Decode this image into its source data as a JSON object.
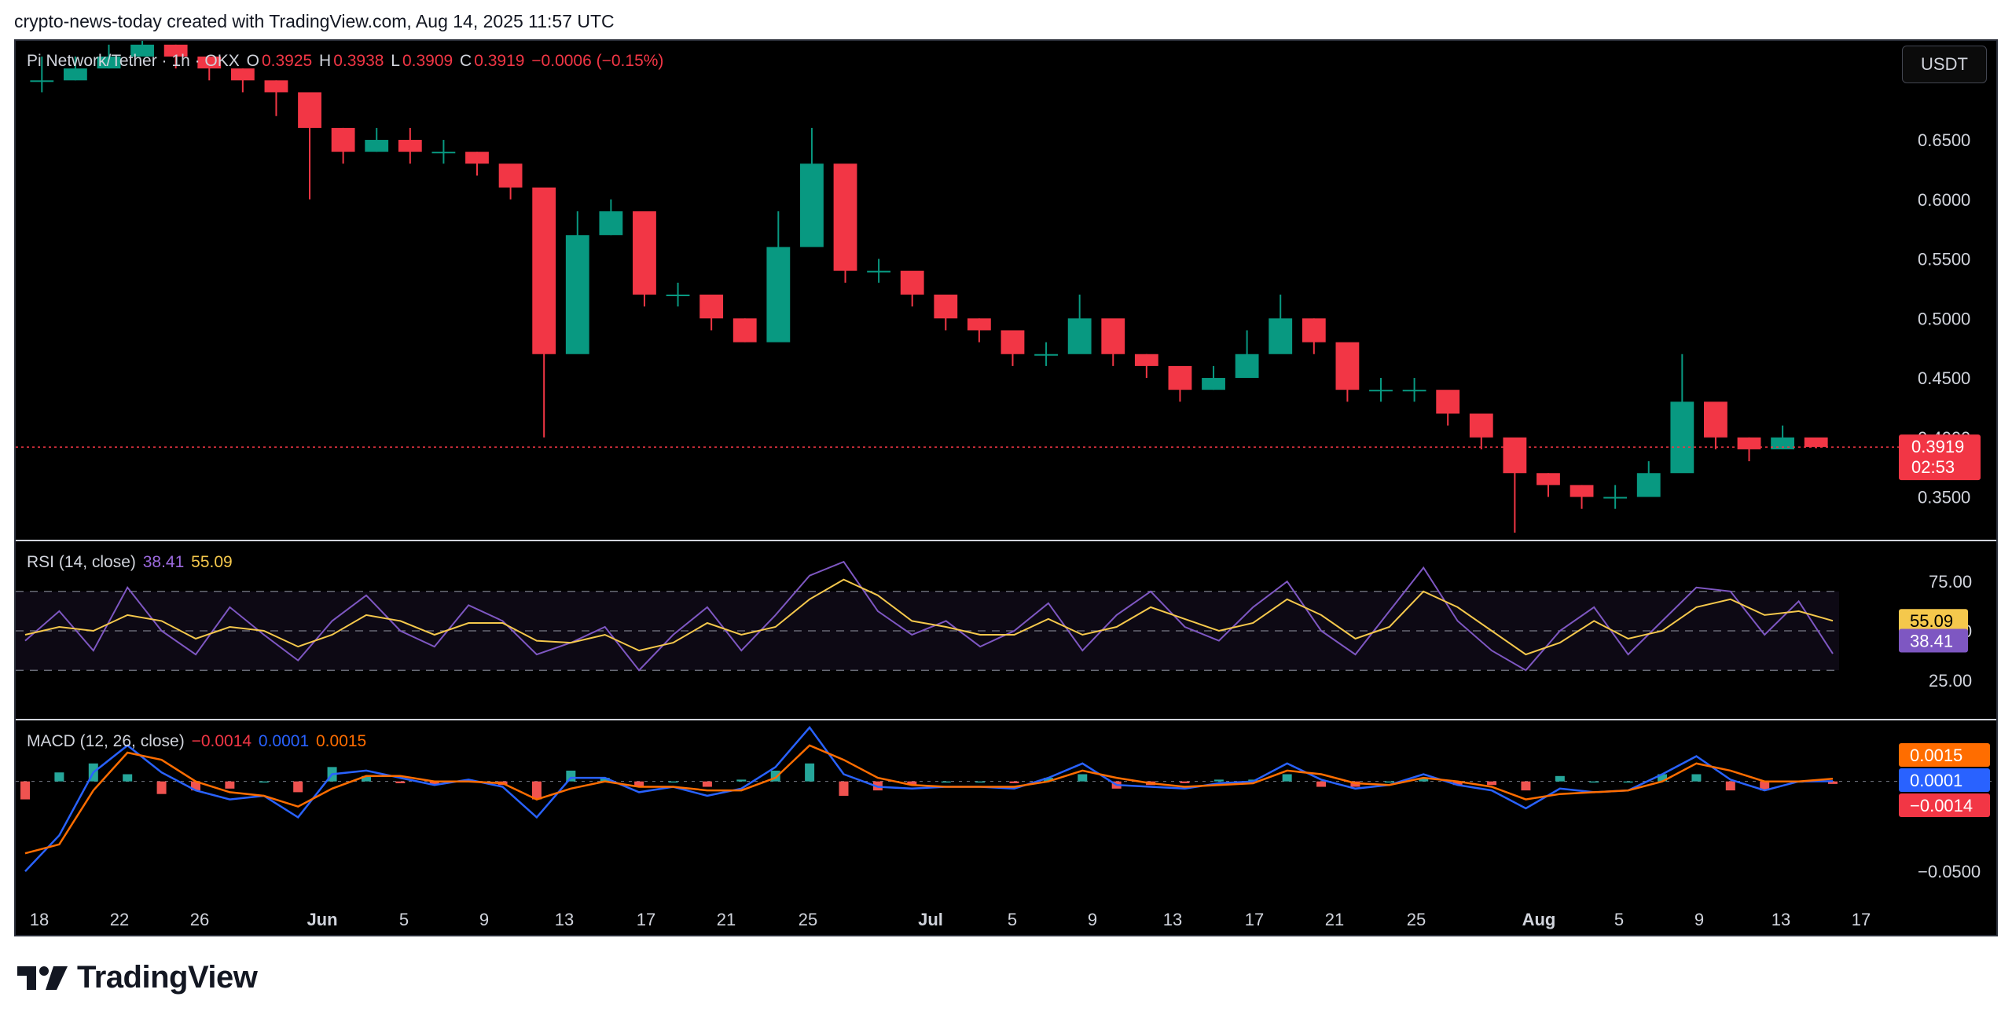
{
  "attribution": "crypto-news-today created with TradingView.com, Aug 14, 2025 11:57 UTC",
  "footer": {
    "brand": "TradingView"
  },
  "currency_button": "USDT",
  "price_pane": {
    "symbol": "Pi Network/Tether · 1h · OKX",
    "open_label": "O",
    "open": "0.3925",
    "high_label": "H",
    "high": "0.3938",
    "low_label": "L",
    "low": "0.3909",
    "close_label": "C",
    "close": "0.3919",
    "change": "−0.0006 (−0.15%)",
    "y_ticks": [
      "0.6500",
      "0.6000",
      "0.5500",
      "0.5000",
      "0.4500",
      "0.4000",
      "0.3500"
    ],
    "last_price": "0.3919",
    "countdown": "02:53"
  },
  "rsi_pane": {
    "title": "RSI (14, close)",
    "rsi_value": "38.41",
    "ma_value": "55.09",
    "y_ticks": [
      "75.00",
      "50.00",
      "25.00"
    ]
  },
  "macd_pane": {
    "title": "MACD (12, 26, close)",
    "hist_value": "−0.0014",
    "macd_value": "0.0001",
    "signal_value": "0.0015",
    "y_ticks": [
      "−0.0500"
    ]
  },
  "x_axis": [
    "18",
    "22",
    "26",
    "Jun",
    "5",
    "9",
    "13",
    "17",
    "21",
    "25",
    "Jul",
    "5",
    "9",
    "13",
    "17",
    "21",
    "25",
    "Aug",
    "5",
    "9",
    "13",
    "17"
  ],
  "colors": {
    "up": "#089981",
    "down": "#f23645",
    "rsi": "#7e57c2",
    "rsi_ma": "#f5c84c",
    "macd": "#2962ff",
    "signal": "#ff6d00",
    "hist_up": "#26a69a",
    "hist_down": "#ef5350"
  },
  "chart_data": [
    {
      "type": "candlestick",
      "series": [
        {
          "name": "Pi Network/Tether · 1h · OKX",
          "x": [
            "May 16",
            "May 18",
            "May 20",
            "May 22",
            "May 24",
            "May 26",
            "May 28",
            "May 30",
            "Jun 1",
            "Jun 3",
            "Jun 5",
            "Jun 7",
            "Jun 9",
            "Jun 11",
            "Jun 12",
            "Jun 13",
            "Jun 15",
            "Jun 17",
            "Jun 19",
            "Jun 21",
            "Jun 23",
            "Jun 24",
            "Jun 25",
            "Jun 26",
            "Jun 27",
            "Jun 29",
            "Jul 1",
            "Jul 3",
            "Jul 5",
            "Jul 7",
            "Jul 9",
            "Jul 11",
            "Jul 13",
            "Jul 15",
            "Jul 17",
            "Jul 19",
            "Jul 21",
            "Jul 22",
            "Jul 23",
            "Jul 25",
            "Jul 27",
            "Jul 29",
            "Jul 31",
            "Aug 1",
            "Aug 2",
            "Aug 3",
            "Aug 5",
            "Aug 7",
            "Aug 9",
            "Aug 10",
            "Aug 11",
            "Aug 12",
            "Aug 13",
            "Aug 14"
          ],
          "close": [
            0.7,
            0.71,
            0.72,
            0.73,
            0.72,
            0.71,
            0.7,
            0.69,
            0.66,
            0.64,
            0.65,
            0.64,
            0.64,
            0.63,
            0.61,
            0.47,
            0.57,
            0.59,
            0.52,
            0.52,
            0.5,
            0.48,
            0.56,
            0.63,
            0.54,
            0.54,
            0.52,
            0.5,
            0.49,
            0.47,
            0.47,
            0.5,
            0.47,
            0.46,
            0.44,
            0.45,
            0.47,
            0.5,
            0.48,
            0.44,
            0.44,
            0.44,
            0.42,
            0.4,
            0.37,
            0.36,
            0.35,
            0.35,
            0.37,
            0.43,
            0.4,
            0.39,
            0.4,
            0.392
          ],
          "high": [
            0.72,
            0.72,
            0.73,
            0.74,
            0.73,
            0.72,
            0.71,
            0.7,
            0.67,
            0.66,
            0.66,
            0.66,
            0.65,
            0.64,
            0.62,
            0.6,
            0.59,
            0.6,
            0.54,
            0.53,
            0.52,
            0.5,
            0.59,
            0.66,
            0.56,
            0.55,
            0.53,
            0.51,
            0.5,
            0.48,
            0.48,
            0.52,
            0.48,
            0.47,
            0.45,
            0.46,
            0.49,
            0.52,
            0.5,
            0.45,
            0.45,
            0.45,
            0.43,
            0.41,
            0.39,
            0.37,
            0.36,
            0.36,
            0.38,
            0.47,
            0.42,
            0.4,
            0.41,
            0.3938
          ],
          "low": [
            0.69,
            0.7,
            0.71,
            0.72,
            0.71,
            0.7,
            0.69,
            0.67,
            0.6,
            0.63,
            0.64,
            0.63,
            0.63,
            0.62,
            0.6,
            0.4,
            0.55,
            0.57,
            0.51,
            0.51,
            0.49,
            0.48,
            0.55,
            0.6,
            0.53,
            0.53,
            0.51,
            0.49,
            0.48,
            0.46,
            0.46,
            0.49,
            0.46,
            0.45,
            0.43,
            0.44,
            0.46,
            0.48,
            0.47,
            0.43,
            0.43,
            0.43,
            0.41,
            0.39,
            0.32,
            0.35,
            0.34,
            0.34,
            0.36,
            0.42,
            0.39,
            0.38,
            0.39,
            0.3909
          ]
        }
      ],
      "ylim": [
        0.32,
        0.72
      ],
      "last": 0.3919
    },
    {
      "type": "line",
      "title": "RSI (14, close)",
      "series": [
        {
          "name": "RSI",
          "values": [
            45,
            60,
            40,
            72,
            50,
            38,
            62,
            48,
            35,
            55,
            68,
            50,
            42,
            63,
            55,
            38,
            44,
            52,
            30,
            48,
            62,
            40,
            58,
            78,
            85,
            60,
            48,
            55,
            42,
            50,
            64,
            40,
            58,
            70,
            52,
            45,
            62,
            75,
            50,
            38,
            60,
            82,
            55,
            40,
            30,
            50,
            62,
            38,
            55,
            72,
            70,
            48,
            65,
            38.41
          ]
        },
        {
          "name": "RSI-based MA",
          "values": [
            48,
            52,
            50,
            58,
            55,
            46,
            52,
            50,
            42,
            48,
            58,
            55,
            48,
            54,
            54,
            45,
            44,
            48,
            40,
            44,
            54,
            48,
            52,
            66,
            76,
            68,
            55,
            52,
            48,
            48,
            56,
            48,
            52,
            62,
            56,
            50,
            54,
            66,
            58,
            46,
            52,
            70,
            62,
            50,
            38,
            44,
            55,
            46,
            50,
            62,
            66,
            58,
            60,
            55.09
          ]
        }
      ],
      "ylim": [
        5,
        95
      ],
      "levels": [
        70,
        50,
        30
      ]
    },
    {
      "type": "line",
      "title": "MACD (12, 26, close)",
      "series": [
        {
          "name": "MACD",
          "values": [
            -0.05,
            -0.03,
            0.005,
            0.02,
            0.005,
            -0.005,
            -0.01,
            -0.008,
            -0.02,
            0.004,
            0.006,
            0.002,
            -0.002,
            0.001,
            -0.003,
            -0.02,
            0.002,
            0.002,
            -0.006,
            -0.003,
            -0.008,
            -0.004,
            0.008,
            0.03,
            0.004,
            -0.003,
            -0.004,
            -0.003,
            -0.003,
            -0.004,
            0.002,
            0.01,
            -0.002,
            -0.003,
            -0.004,
            -0.001,
            0.0,
            0.01,
            0.001,
            -0.004,
            -0.002,
            0.004,
            -0.002,
            -0.005,
            -0.015,
            -0.004,
            -0.006,
            -0.005,
            0.004,
            0.014,
            0.001,
            -0.005,
            0.0,
            0.0001
          ]
        },
        {
          "name": "Signal",
          "values": [
            -0.04,
            -0.035,
            -0.005,
            0.016,
            0.012,
            0.0,
            -0.006,
            -0.008,
            -0.014,
            -0.004,
            0.003,
            0.003,
            0.0,
            0.0,
            -0.001,
            -0.01,
            -0.004,
            0.0,
            -0.003,
            -0.003,
            -0.005,
            -0.005,
            0.002,
            0.02,
            0.012,
            0.002,
            -0.002,
            -0.003,
            -0.003,
            -0.003,
            0.0,
            0.006,
            0.002,
            -0.001,
            -0.003,
            -0.002,
            -0.001,
            0.006,
            0.004,
            -0.001,
            -0.002,
            0.002,
            0.0,
            -0.003,
            -0.01,
            -0.007,
            -0.006,
            -0.005,
            0.0,
            0.01,
            0.006,
            0.0,
            0.0,
            0.0015
          ]
        }
      ],
      "ylim": [
        -0.06,
        0.03
      ]
    }
  ]
}
